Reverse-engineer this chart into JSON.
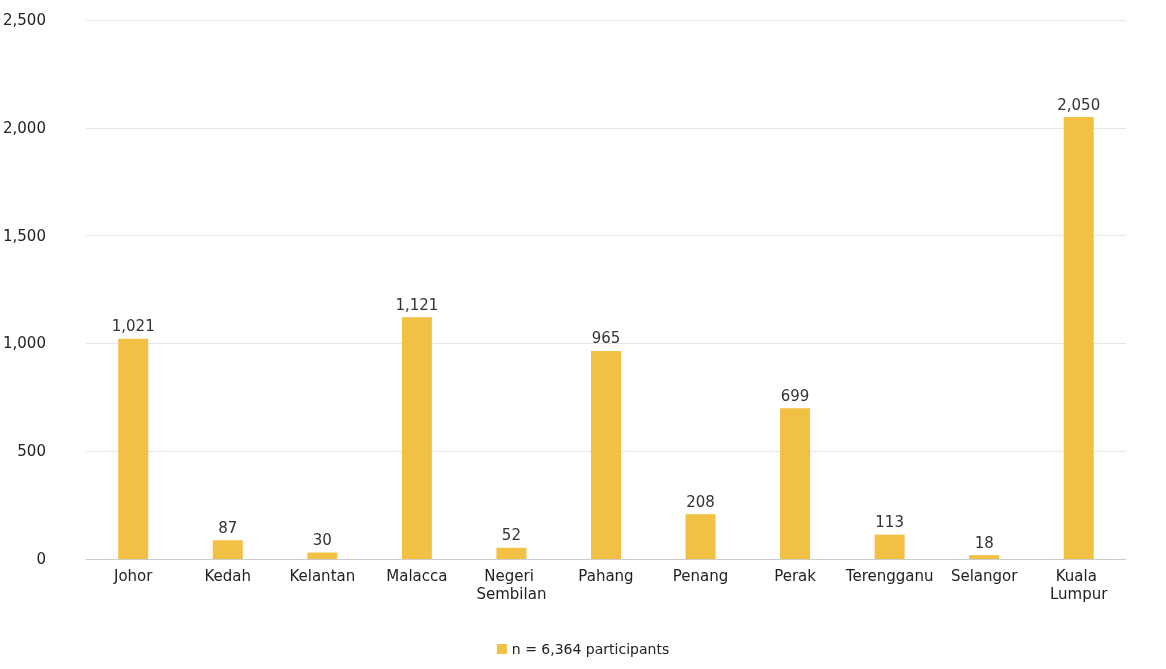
{
  "chart_data": {
    "type": "bar",
    "categories": [
      "Johor",
      "Kedah",
      "Kelantan",
      "Malacca",
      "Negeri Sembilan",
      "Pahang",
      "Penang",
      "Perak",
      "Terengganu",
      "Selangor",
      "Kuala Lumpur"
    ],
    "series": [
      {
        "name": "n = 6,364 participants",
        "color": "#f2c043",
        "values": [
          1021,
          87,
          30,
          1121,
          52,
          965,
          208,
          699,
          113,
          18,
          2050
        ],
        "value_labels": [
          "1,021",
          "87",
          "30",
          "1,121",
          "52",
          "965",
          "208",
          "699",
          "113",
          "18",
          "2,050"
        ]
      }
    ],
    "ylim": [
      0,
      2500
    ],
    "yticks": [
      {
        "value": 0,
        "label": "0"
      },
      {
        "value": 500,
        "label": "500"
      },
      {
        "value": 1000,
        "label": "1,000"
      },
      {
        "value": 1500,
        "label": "1,500"
      },
      {
        "value": 2000,
        "label": "2,000"
      },
      {
        "value": 2500,
        "label": "2,500"
      }
    ],
    "grid": "y",
    "legend": "bottom"
  }
}
